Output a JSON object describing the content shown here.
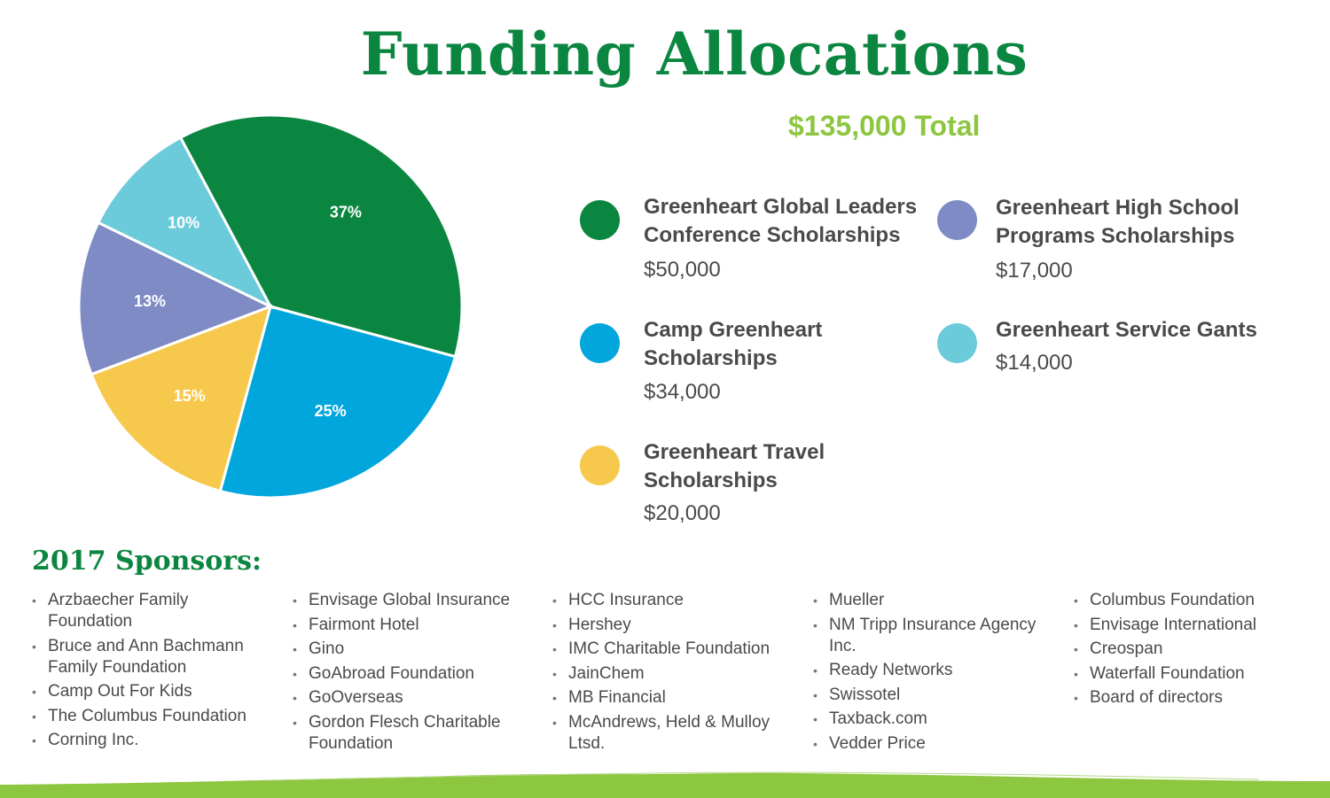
{
  "title": "Funding Allocations",
  "total": "$135,000 Total",
  "colors": {
    "dark_green": "#0b8640",
    "blue": "#00a6dc",
    "yellow": "#f6c94d",
    "periwinkle": "#7e8bc4",
    "light_blue": "#6ccbda",
    "lime": "#8dc63f"
  },
  "legend": [
    {
      "name": "Greenheart Global Leaders Conference Scholarships",
      "amount": "$50,000",
      "color": "#0b8640"
    },
    {
      "name": "Camp Greenheart Scholarships",
      "amount": "$34,000",
      "color": "#00a6dc"
    },
    {
      "name": "Greenheart Travel Scholarships",
      "amount": "$20,000",
      "color": "#f6c94d"
    },
    {
      "name": "Greenheart High School Programs Scholarships",
      "amount": "$17,000",
      "color": "#7e8bc4"
    },
    {
      "name": "Greenheart Service Gants",
      "amount": "$14,000",
      "color": "#6ccbda"
    }
  ],
  "chart_data": {
    "type": "pie",
    "slices": [
      {
        "label": "37%",
        "value": 37,
        "color": "#0b8640"
      },
      {
        "label": "25%",
        "value": 25,
        "color": "#00a6dc"
      },
      {
        "label": "15%",
        "value": 15,
        "color": "#f6c94d"
      },
      {
        "label": "13%",
        "value": 13,
        "color": "#7e8bc4"
      },
      {
        "label": "10%",
        "value": 10,
        "color": "#6ccbda"
      }
    ]
  },
  "sponsors": {
    "heading": "2017 Sponsors:",
    "columns": [
      [
        "Arzbaecher Family Foundation",
        "Bruce and Ann Bachmann Family Foundation",
        "Camp Out For Kids",
        "The Columbus Foundation",
        "Corning Inc."
      ],
      [
        "Envisage Global Insurance",
        "Fairmont Hotel",
        "Gino",
        "GoAbroad Foundation",
        "GoOverseas",
        "Gordon Flesch Charitable Foundation"
      ],
      [
        "HCC Insurance",
        "Hershey",
        "IMC Charitable Foundation",
        "JainChem",
        "MB Financial",
        "McAndrews, Held & Mulloy Ltsd."
      ],
      [
        "Mueller",
        "NM Tripp Insurance Agency Inc.",
        "Ready Networks",
        "Swissotel",
        "Taxback.com",
        "Vedder Price"
      ],
      [
        "Columbus Foundation",
        "Envisage International",
        "Creospan",
        "Waterfall Foundation",
        "Board of directors"
      ]
    ]
  }
}
